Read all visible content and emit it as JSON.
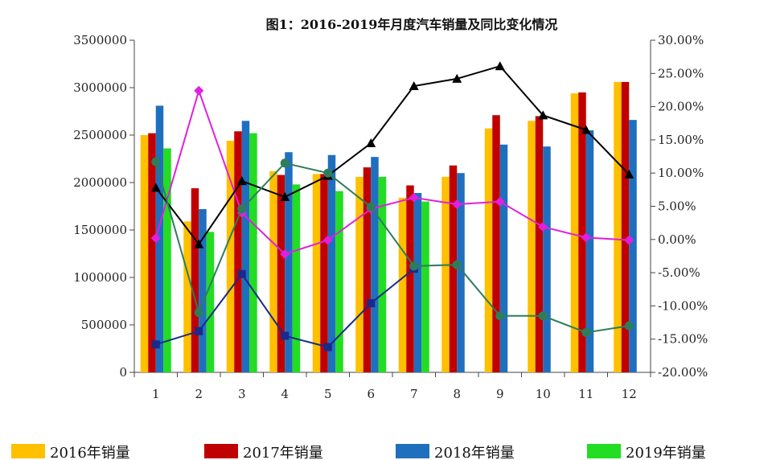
{
  "chart_data": {
    "type": "bar",
    "title": "图1：2016-2019年月度汽车销量及同比变化情况",
    "categories": [
      "1",
      "2",
      "3",
      "4",
      "5",
      "6",
      "7",
      "8",
      "9",
      "10",
      "11",
      "12"
    ],
    "y_left": {
      "range": [
        0,
        3500000
      ],
      "ticks": [
        "0",
        "500000",
        "1000000",
        "1500000",
        "2000000",
        "2500000",
        "3000000",
        "3500000"
      ]
    },
    "y_right": {
      "range": [
        -20,
        30
      ],
      "ticks": [
        "-20.00%",
        "-15.00%",
        "-10.00%",
        "-5.00%",
        "0.00%",
        "5.00%",
        "10.00%",
        "15.00%",
        "20.00%",
        "25.00%",
        "30.00%"
      ]
    },
    "series": [
      {
        "name": "2016年销量",
        "kind": "bar",
        "color": "#FFC000",
        "values": [
          2500000,
          1590000,
          2440000,
          2120000,
          2090000,
          2060000,
          1840000,
          2060000,
          2570000,
          2650000,
          2940000,
          3060000
        ]
      },
      {
        "name": "2017年销量",
        "kind": "bar",
        "color": "#C00000",
        "values": [
          2520000,
          1940000,
          2540000,
          2080000,
          2090000,
          2160000,
          1970000,
          2180000,
          2710000,
          2700000,
          2950000,
          3060000
        ]
      },
      {
        "name": "2018年销量",
        "kind": "bar",
        "color": "#1F6FBF",
        "values": [
          2810000,
          1720000,
          2650000,
          2320000,
          2290000,
          2270000,
          1890000,
          2100000,
          2400000,
          2380000,
          2550000,
          2660000
        ]
      },
      {
        "name": "2019年销量",
        "kind": "bar",
        "color": "#22DD22",
        "values": [
          2360000,
          1480000,
          2520000,
          1980000,
          1910000,
          2060000,
          1800000,
          null,
          null,
          null,
          null,
          null
        ]
      },
      {
        "kind": "line",
        "axis": "right",
        "color": "#E020E0",
        "marker": "diamond",
        "values": [
          0.2,
          22.4,
          4.0,
          -2.2,
          -0.1,
          4.6,
          6.3,
          5.3,
          5.7,
          1.9,
          0.3,
          -0.1
        ]
      },
      {
        "kind": "line",
        "axis": "right",
        "color": "#000000",
        "marker": "triangle",
        "values": [
          7.8,
          -0.7,
          8.8,
          6.4,
          9.6,
          14.5,
          23.1,
          24.2,
          26.1,
          18.7,
          16.5,
          9.8
        ]
      },
      {
        "kind": "line",
        "axis": "right",
        "color": "#1A2A8A",
        "marker": "square",
        "values": [
          -15.8,
          -13.8,
          -5.2,
          -14.5,
          -16.2,
          -9.6,
          -4.4,
          null,
          null,
          null,
          null,
          null
        ]
      },
      {
        "kind": "line",
        "axis": "right",
        "color": "#2E7D5A",
        "marker": "circle",
        "values": [
          11.7,
          -11.0,
          4.6,
          11.5,
          10.0,
          4.9,
          -4.0,
          -3.8,
          -11.5,
          -11.5,
          -14.0,
          -13.0
        ]
      }
    ],
    "grid": false,
    "legend_position": "bottom"
  }
}
